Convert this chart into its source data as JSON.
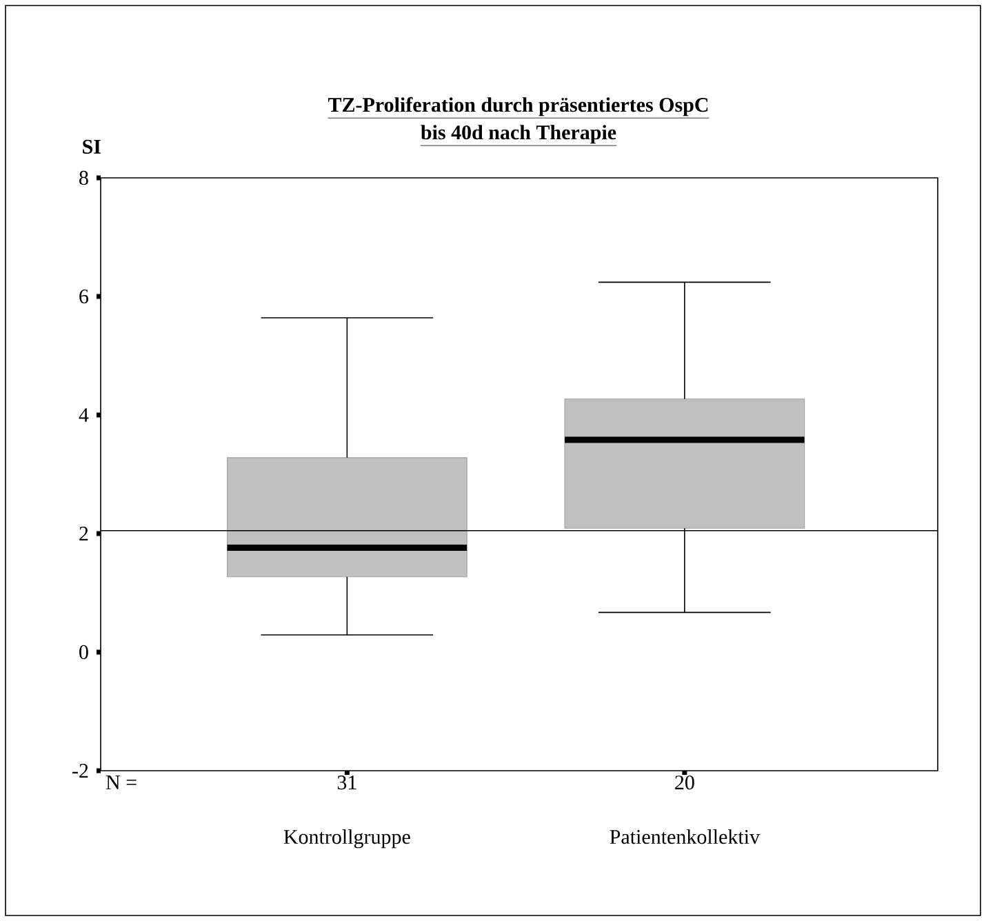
{
  "chart_data": {
    "type": "box",
    "title": "TZ-Proliferation durch präsentiertes OspC",
    "subtitle": "bis 40d nach Therapie",
    "ylabel": "SI",
    "categories": [
      "Kontrollgruppe",
      "Patientenkollektiv"
    ],
    "boxes": [
      {
        "low": 0.29,
        "q1": 1.27,
        "median": 1.76,
        "q3": 3.28,
        "high": 5.64
      },
      {
        "low": 0.67,
        "q1": 2.09,
        "median": 3.58,
        "q3": 4.27,
        "high": 6.24
      }
    ],
    "color": "#c0c0c0",
    "ylim": [
      -2,
      8
    ],
    "yticks": [
      -2,
      0,
      2,
      4,
      6,
      8
    ],
    "ref_lines": [
      {
        "axis": "y",
        "value": 2.05
      }
    ],
    "annotations": [
      "N =",
      "31",
      "20"
    ],
    "grid": false
  }
}
